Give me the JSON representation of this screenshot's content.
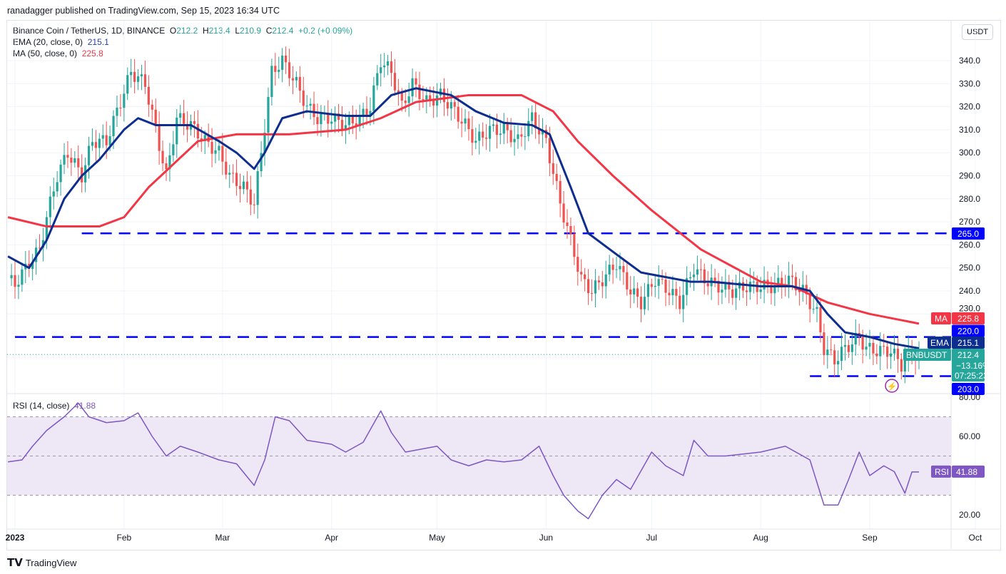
{
  "header": {
    "published": "ranadagger published on TradingView.com, Sep 15, 2023 16:34 UTC"
  },
  "legend": {
    "symbol": "Binance Coin / TetherUS, 1D, BINANCE",
    "o_label": "O",
    "o": "212.2",
    "h_label": "H",
    "h": "213.4",
    "l_label": "L",
    "l": "210.9",
    "c_label": "C",
    "c": "212.4",
    "change": "+0.2 (+0.09%)",
    "ema": "EMA (20, close, 0)",
    "ema_value": "215.1",
    "ma": "MA (50, close, 0)",
    "ma_value": "225.8",
    "rsi": "RSI (14, close)",
    "rsi_value": "41.88"
  },
  "currency": "USDT",
  "logo": "TradingView",
  "colors": {
    "up": "#26a69a",
    "down": "#ef5350",
    "ema": "#0d2e8f",
    "ma": "#f23645",
    "level": "#0000ff",
    "rsi": "#7e57c2",
    "band": "#ede7f6"
  },
  "chart_data": {
    "type": "candlestick",
    "price_axis": {
      "ticks": [
        340,
        330,
        320,
        310,
        300,
        290,
        280,
        270,
        260,
        250,
        240,
        230
      ],
      "labels": [
        "340.0",
        "330.0",
        "320.0",
        "310.0",
        "300.0",
        "290.0",
        "280.0",
        "270.0",
        "260.0",
        "250.0",
        "240.0",
        "230.0"
      ]
    },
    "time_axis": {
      "labels": [
        "2023",
        "Feb",
        "Mar",
        "Apr",
        "May",
        "Jun",
        "Jul",
        "Aug",
        "Sep",
        "Oct"
      ],
      "dates": [
        "2023-01-01",
        "2023-02-01",
        "2023-03-01",
        "2023-04-01",
        "2023-05-01",
        "2023-06-01",
        "2023-07-01",
        "2023-08-01",
        "2023-09-01",
        "2023-10-01"
      ]
    },
    "horizontal_levels": [
      {
        "value": 265,
        "label": "265.0",
        "from": "2023-01-20"
      },
      {
        "value": 220,
        "label": "220.0",
        "from": "2023-01-01"
      },
      {
        "value": 203,
        "label": "203.0",
        "from": "2023-08-15"
      }
    ],
    "flags": {
      "ma": {
        "name": "MA",
        "value": "225.8"
      },
      "ema": {
        "name": "EMA",
        "value": "215.1"
      },
      "last": {
        "name": "BNBUSDT",
        "value": "212.4",
        "change": "−13.16%",
        "countdown": "07:25:23"
      }
    },
    "close": [
      [
        "2022-12-30",
        245
      ],
      [
        "2023-01-01",
        243
      ],
      [
        "2023-01-05",
        252
      ],
      [
        "2023-01-08",
        258
      ],
      [
        "2023-01-10",
        272
      ],
      [
        "2023-01-13",
        290
      ],
      [
        "2023-01-16",
        300
      ],
      [
        "2023-01-20",
        290
      ],
      [
        "2023-01-23",
        305
      ],
      [
        "2023-01-27",
        305
      ],
      [
        "2023-01-30",
        318
      ],
      [
        "2023-02-03",
        335
      ],
      [
        "2023-02-07",
        330
      ],
      [
        "2023-02-10",
        310
      ],
      [
        "2023-02-13",
        290
      ],
      [
        "2023-02-16",
        315
      ],
      [
        "2023-02-20",
        312
      ],
      [
        "2023-02-24",
        305
      ],
      [
        "2023-02-28",
        300
      ],
      [
        "2023-03-03",
        290
      ],
      [
        "2023-03-07",
        285
      ],
      [
        "2023-03-10",
        278
      ],
      [
        "2023-03-12",
        300
      ],
      [
        "2023-03-15",
        335
      ],
      [
        "2023-03-18",
        340
      ],
      [
        "2023-03-22",
        330
      ],
      [
        "2023-03-25",
        320
      ],
      [
        "2023-03-28",
        315
      ],
      [
        "2023-04-01",
        315
      ],
      [
        "2023-04-05",
        312
      ],
      [
        "2023-04-09",
        315
      ],
      [
        "2023-04-12",
        320
      ],
      [
        "2023-04-15",
        340
      ],
      [
        "2023-04-18",
        335
      ],
      [
        "2023-04-21",
        320
      ],
      [
        "2023-04-24",
        330
      ],
      [
        "2023-04-28",
        322
      ],
      [
        "2023-05-02",
        325
      ],
      [
        "2023-05-05",
        320
      ],
      [
        "2023-05-09",
        312
      ],
      [
        "2023-05-12",
        305
      ],
      [
        "2023-05-16",
        310
      ],
      [
        "2023-05-20",
        310
      ],
      [
        "2023-05-24",
        305
      ],
      [
        "2023-05-28",
        315
      ],
      [
        "2023-06-01",
        305
      ],
      [
        "2023-06-05",
        278
      ],
      [
        "2023-06-08",
        262
      ],
      [
        "2023-06-11",
        245
      ],
      [
        "2023-06-14",
        240
      ],
      [
        "2023-06-17",
        245
      ],
      [
        "2023-06-21",
        252
      ],
      [
        "2023-06-25",
        240
      ],
      [
        "2023-06-28",
        235
      ],
      [
        "2023-07-02",
        245
      ],
      [
        "2023-07-06",
        240
      ],
      [
        "2023-07-09",
        235
      ],
      [
        "2023-07-13",
        250
      ],
      [
        "2023-07-16",
        245
      ],
      [
        "2023-07-20",
        242
      ],
      [
        "2023-07-24",
        240
      ],
      [
        "2023-07-28",
        242
      ],
      [
        "2023-08-01",
        242
      ],
      [
        "2023-08-05",
        242
      ],
      [
        "2023-08-09",
        245
      ],
      [
        "2023-08-13",
        240
      ],
      [
        "2023-08-17",
        230
      ],
      [
        "2023-08-19",
        215
      ],
      [
        "2023-08-22",
        210
      ],
      [
        "2023-08-25",
        215
      ],
      [
        "2023-08-29",
        220
      ],
      [
        "2023-08-31",
        215
      ],
      [
        "2023-09-03",
        214
      ],
      [
        "2023-09-07",
        214
      ],
      [
        "2023-09-10",
        208
      ],
      [
        "2023-09-12",
        212
      ],
      [
        "2023-09-15",
        212.4
      ]
    ],
    "ema20": [
      [
        "2022-12-30",
        255
      ],
      [
        "2023-01-05",
        250
      ],
      [
        "2023-01-10",
        262
      ],
      [
        "2023-01-15",
        280
      ],
      [
        "2023-01-20",
        290
      ],
      [
        "2023-01-25",
        297
      ],
      [
        "2023-02-01",
        310
      ],
      [
        "2023-02-05",
        315
      ],
      [
        "2023-02-10",
        312
      ],
      [
        "2023-02-20",
        312
      ],
      [
        "2023-02-28",
        305
      ],
      [
        "2023-03-05",
        300
      ],
      [
        "2023-03-10",
        293
      ],
      [
        "2023-03-13",
        300
      ],
      [
        "2023-03-18",
        315
      ],
      [
        "2023-03-25",
        318
      ],
      [
        "2023-04-05",
        316
      ],
      [
        "2023-04-12",
        316
      ],
      [
        "2023-04-18",
        325
      ],
      [
        "2023-04-25",
        328
      ],
      [
        "2023-05-05",
        325
      ],
      [
        "2023-05-12",
        318
      ],
      [
        "2023-05-20",
        313
      ],
      [
        "2023-05-28",
        312
      ],
      [
        "2023-06-02",
        308
      ],
      [
        "2023-06-08",
        285
      ],
      [
        "2023-06-13",
        265
      ],
      [
        "2023-06-20",
        257
      ],
      [
        "2023-06-28",
        248
      ],
      [
        "2023-07-05",
        246
      ],
      [
        "2023-07-12",
        244
      ],
      [
        "2023-07-18",
        244
      ],
      [
        "2023-08-01",
        242
      ],
      [
        "2023-08-10",
        242
      ],
      [
        "2023-08-15",
        240
      ],
      [
        "2023-08-20",
        230
      ],
      [
        "2023-08-25",
        222
      ],
      [
        "2023-09-01",
        220
      ],
      [
        "2023-09-08",
        217
      ],
      [
        "2023-09-15",
        215.1
      ]
    ],
    "ma50": [
      [
        "2022-12-30",
        272
      ],
      [
        "2023-01-10",
        268
      ],
      [
        "2023-01-25",
        268
      ],
      [
        "2023-02-01",
        272
      ],
      [
        "2023-02-08",
        285
      ],
      [
        "2023-02-15",
        295
      ],
      [
        "2023-02-22",
        305
      ],
      [
        "2023-03-05",
        308
      ],
      [
        "2023-03-20",
        308
      ],
      [
        "2023-04-05",
        310
      ],
      [
        "2023-04-15",
        315
      ],
      [
        "2023-04-25",
        322
      ],
      [
        "2023-05-10",
        325
      ],
      [
        "2023-05-25",
        325
      ],
      [
        "2023-06-03",
        318
      ],
      [
        "2023-06-10",
        305
      ],
      [
        "2023-06-20",
        290
      ],
      [
        "2023-07-01",
        275
      ],
      [
        "2023-07-15",
        258
      ],
      [
        "2023-08-01",
        244
      ],
      [
        "2023-08-10",
        242
      ],
      [
        "2023-08-20",
        235
      ],
      [
        "2023-09-01",
        230
      ],
      [
        "2023-09-15",
        225.8
      ]
    ],
    "rsi_axis": {
      "ticks": [
        80,
        60,
        20
      ],
      "labels": [
        "80.00",
        "60.00",
        "20.00"
      ],
      "band": [
        30,
        70
      ]
    },
    "rsi_flag": {
      "name": "RSI",
      "value": "41.88"
    },
    "rsi14": [
      [
        "2022-12-30",
        47
      ],
      [
        "2023-01-03",
        48
      ],
      [
        "2023-01-06",
        55
      ],
      [
        "2023-01-10",
        63
      ],
      [
        "2023-01-15",
        70
      ],
      [
        "2023-01-19",
        77
      ],
      [
        "2023-01-22",
        70
      ],
      [
        "2023-01-27",
        67
      ],
      [
        "2023-02-01",
        68
      ],
      [
        "2023-02-05",
        72
      ],
      [
        "2023-02-09",
        60
      ],
      [
        "2023-02-13",
        50
      ],
      [
        "2023-02-17",
        55
      ],
      [
        "2023-02-22",
        52
      ],
      [
        "2023-02-28",
        48
      ],
      [
        "2023-03-05",
        46
      ],
      [
        "2023-03-10",
        35
      ],
      [
        "2023-03-13",
        48
      ],
      [
        "2023-03-16",
        70
      ],
      [
        "2023-03-20",
        68
      ],
      [
        "2023-03-25",
        58
      ],
      [
        "2023-04-01",
        56
      ],
      [
        "2023-04-05",
        52
      ],
      [
        "2023-04-10",
        57
      ],
      [
        "2023-04-15",
        73
      ],
      [
        "2023-04-18",
        62
      ],
      [
        "2023-04-22",
        52
      ],
      [
        "2023-05-01",
        55
      ],
      [
        "2023-05-05",
        48
      ],
      [
        "2023-05-10",
        45
      ],
      [
        "2023-05-15",
        48
      ],
      [
        "2023-05-20",
        47
      ],
      [
        "2023-05-25",
        48
      ],
      [
        "2023-05-30",
        55
      ],
      [
        "2023-06-03",
        40
      ],
      [
        "2023-06-06",
        30
      ],
      [
        "2023-06-10",
        22
      ],
      [
        "2023-06-13",
        18
      ],
      [
        "2023-06-17",
        30
      ],
      [
        "2023-06-21",
        38
      ],
      [
        "2023-06-25",
        33
      ],
      [
        "2023-07-01",
        52
      ],
      [
        "2023-07-05",
        45
      ],
      [
        "2023-07-10",
        40
      ],
      [
        "2023-07-13",
        58
      ],
      [
        "2023-07-17",
        50
      ],
      [
        "2023-07-22",
        50
      ],
      [
        "2023-08-01",
        52
      ],
      [
        "2023-08-08",
        55
      ],
      [
        "2023-08-15",
        48
      ],
      [
        "2023-08-19",
        25
      ],
      [
        "2023-08-23",
        25
      ],
      [
        "2023-08-26",
        38
      ],
      [
        "2023-08-29",
        52
      ],
      [
        "2023-09-01",
        40
      ],
      [
        "2023-09-05",
        45
      ],
      [
        "2023-09-08",
        42
      ],
      [
        "2023-09-11",
        31
      ],
      [
        "2023-09-13",
        41.88
      ],
      [
        "2023-09-15",
        41.88
      ]
    ]
  }
}
